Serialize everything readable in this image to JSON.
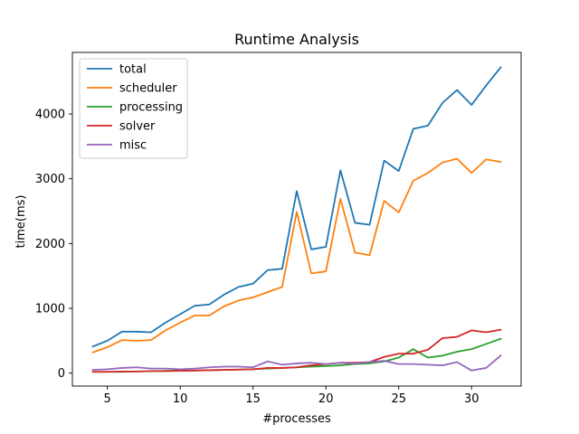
{
  "chart_data": {
    "type": "line",
    "title": "Runtime Analysis",
    "xlabel": "#processes",
    "ylabel": "time(ms)",
    "xlim": [
      2.6,
      33.4
    ],
    "ylim": [
      -200,
      4950
    ],
    "xticks": [
      5,
      10,
      15,
      20,
      25,
      30
    ],
    "yticks": [
      0,
      1000,
      2000,
      3000,
      4000
    ],
    "grid": false,
    "legend": "top-left",
    "x": [
      4,
      5,
      6,
      7,
      8,
      9,
      10,
      11,
      12,
      13,
      14,
      15,
      16,
      17,
      18,
      19,
      20,
      21,
      22,
      23,
      24,
      25,
      26,
      27,
      28,
      29,
      30,
      31,
      32
    ],
    "series": [
      {
        "name": "total",
        "color": "#1f77b4",
        "values": [
          410,
          500,
          640,
          640,
          630,
          780,
          910,
          1040,
          1060,
          1210,
          1330,
          1380,
          1590,
          1610,
          2810,
          1910,
          1950,
          3130,
          2320,
          2290,
          3280,
          3120,
          3770,
          3820,
          4170,
          4370,
          4140,
          4440,
          4720
        ]
      },
      {
        "name": "scheduler",
        "color": "#ff7f0e",
        "values": [
          320,
          400,
          510,
          500,
          510,
          660,
          780,
          890,
          890,
          1030,
          1120,
          1170,
          1250,
          1330,
          2490,
          1540,
          1570,
          2690,
          1860,
          1820,
          2660,
          2480,
          2970,
          3090,
          3250,
          3310,
          3090,
          3300,
          3260
        ]
      },
      {
        "name": "processing",
        "color": "#2ca02c",
        "values": [
          20,
          20,
          20,
          25,
          30,
          35,
          40,
          40,
          45,
          50,
          55,
          60,
          70,
          80,
          90,
          100,
          110,
          120,
          140,
          150,
          180,
          240,
          370,
          240,
          270,
          330,
          370,
          450,
          530
        ]
      },
      {
        "name": "solver",
        "color": "#d62728",
        "values": [
          20,
          20,
          25,
          25,
          30,
          30,
          35,
          40,
          45,
          50,
          55,
          60,
          80,
          80,
          90,
          120,
          140,
          160,
          160,
          170,
          250,
          300,
          300,
          360,
          540,
          560,
          660,
          630,
          670
        ]
      },
      {
        "name": "misc",
        "color": "#9467bd",
        "values": [
          50,
          60,
          80,
          90,
          70,
          70,
          60,
          70,
          90,
          100,
          100,
          90,
          180,
          130,
          150,
          160,
          140,
          160,
          150,
          170,
          190,
          140,
          140,
          130,
          120,
          170,
          40,
          80,
          270
        ]
      }
    ]
  }
}
